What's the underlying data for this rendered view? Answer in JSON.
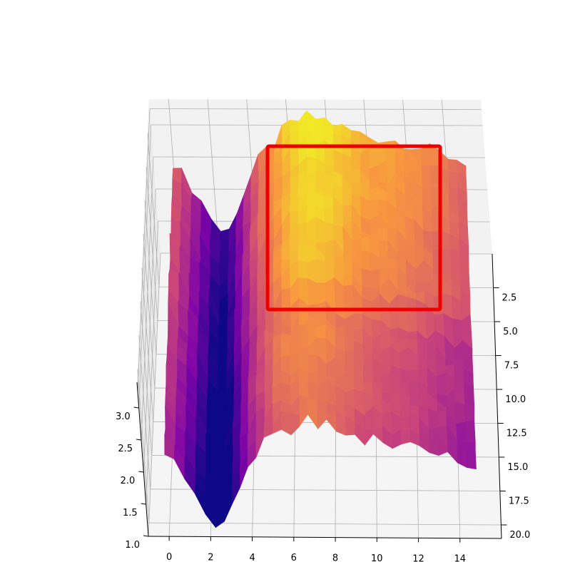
{
  "chart_data": {
    "type": "surface3d",
    "colormap": "plasma",
    "title": "",
    "xlabel": "",
    "ylabel": "",
    "zlabel": "",
    "x_ticks": [
      "0",
      "2",
      "4",
      "6",
      "8",
      "10",
      "12",
      "14"
    ],
    "y_ticks": [
      "2.5",
      "5.0",
      "7.5",
      "10.0",
      "12.5",
      "15.0",
      "17.5",
      "20.0"
    ],
    "z_ticks": [
      "1.0",
      "1.5",
      "2.0",
      "2.5",
      "3.0"
    ],
    "xlim": [
      -1,
      16
    ],
    "ylim": [
      0,
      21
    ],
    "zlim": [
      1.0,
      3.4
    ],
    "grid": true,
    "profile_x": [
      0,
      1,
      2,
      2.5,
      3,
      4,
      4.5,
      5,
      6,
      7,
      8,
      9,
      10,
      11,
      12,
      13,
      14,
      15
    ],
    "profile_z": [
      2.55,
      2.1,
      1.55,
      1.35,
      1.75,
      2.35,
      2.6,
      2.75,
      3.1,
      3.25,
      3.2,
      3.05,
      2.95,
      2.9,
      2.85,
      2.75,
      2.65,
      2.55
    ],
    "highlight_box": {
      "color": "#ee0000",
      "description_region": "x 5 to 13, y 0 to 8"
    }
  }
}
